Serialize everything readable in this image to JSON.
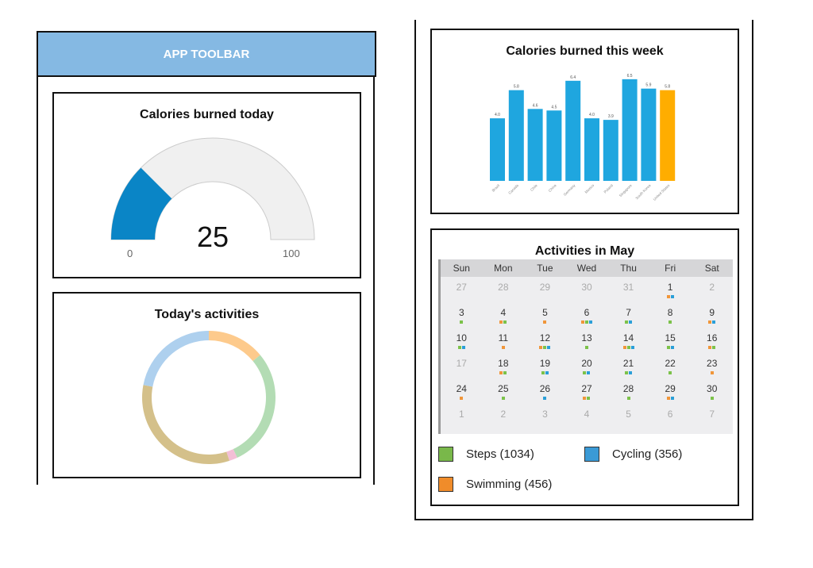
{
  "toolbar": {
    "title": "APP TOOLBAR"
  },
  "gauge": {
    "title": "Calories burned today",
    "value": 25,
    "value_label": "25",
    "min_label": "0",
    "max_label": "100",
    "color": "#0a85c6"
  },
  "activities": {
    "title": "Today's activities",
    "segments": [
      {
        "name": "orange",
        "fraction": 0.14,
        "color": "#fdca8c"
      },
      {
        "name": "green",
        "fraction": 0.29,
        "color": "#b3dcb4"
      },
      {
        "name": "pink",
        "fraction": 0.02,
        "color": "#f3bfd6"
      },
      {
        "name": "tan",
        "fraction": 0.33,
        "color": "#d4c08a"
      },
      {
        "name": "blue",
        "fraction": 0.22,
        "color": "#aed0ee"
      }
    ]
  },
  "chart_data": {
    "type": "bar",
    "title": "Calories burned this week",
    "categories": [
      "Brazil",
      "Canada",
      "Chile",
      "China",
      "Germany",
      "Mexico",
      "Poland",
      "Singapore",
      "South Korea",
      "United States"
    ],
    "values": [
      4.0,
      5.8,
      4.6,
      4.5,
      6.4,
      4.0,
      3.9,
      6.5,
      5.9,
      5.8
    ],
    "value_labels": [
      "4.0",
      "5.8",
      "4.6",
      "4.5",
      "6.4",
      "4.0",
      "3.9",
      "6.5",
      "5.9",
      "5.8"
    ],
    "colors": [
      "#1fa6df",
      "#1fa6df",
      "#1fa6df",
      "#1fa6df",
      "#1fa6df",
      "#1fa6df",
      "#1fa6df",
      "#1fa6df",
      "#1fa6df",
      "#ffad00"
    ],
    "ylim": [
      0,
      7
    ]
  },
  "calendar": {
    "title": "Activities in May",
    "weekdays": [
      "Sun",
      "Mon",
      "Tue",
      "Wed",
      "Thu",
      "Fri",
      "Sat"
    ],
    "days": [
      {
        "d": "27",
        "m": 1,
        "a": ""
      },
      {
        "d": "28",
        "m": 1,
        "a": ""
      },
      {
        "d": "29",
        "m": 1,
        "a": ""
      },
      {
        "d": "30",
        "m": 1,
        "a": ""
      },
      {
        "d": "31",
        "m": 1,
        "a": ""
      },
      {
        "d": "1",
        "m": 0,
        "a": "ob"
      },
      {
        "d": "2",
        "m": 1,
        "a": ""
      },
      {
        "d": "3",
        "m": 0,
        "a": "g"
      },
      {
        "d": "4",
        "m": 0,
        "a": "og"
      },
      {
        "d": "5",
        "m": 0,
        "a": "o"
      },
      {
        "d": "6",
        "m": 0,
        "a": "ogb"
      },
      {
        "d": "7",
        "m": 0,
        "a": "gb"
      },
      {
        "d": "8",
        "m": 0,
        "a": "g"
      },
      {
        "d": "9",
        "m": 0,
        "a": "ob"
      },
      {
        "d": "10",
        "m": 0,
        "a": "gb"
      },
      {
        "d": "11",
        "m": 0,
        "a": "o"
      },
      {
        "d": "12",
        "m": 0,
        "a": "ogb"
      },
      {
        "d": "13",
        "m": 0,
        "a": "g"
      },
      {
        "d": "14",
        "m": 0,
        "a": "ogb"
      },
      {
        "d": "15",
        "m": 0,
        "a": "gb"
      },
      {
        "d": "16",
        "m": 0,
        "a": "og"
      },
      {
        "d": "17",
        "m": 1,
        "a": ""
      },
      {
        "d": "18",
        "m": 0,
        "a": "og"
      },
      {
        "d": "19",
        "m": 0,
        "a": "gb"
      },
      {
        "d": "20",
        "m": 0,
        "a": "gb"
      },
      {
        "d": "21",
        "m": 0,
        "a": "gb"
      },
      {
        "d": "22",
        "m": 0,
        "a": "g"
      },
      {
        "d": "23",
        "m": 0,
        "a": "o"
      },
      {
        "d": "24",
        "m": 0,
        "a": "o"
      },
      {
        "d": "25",
        "m": 0,
        "a": "g"
      },
      {
        "d": "26",
        "m": 0,
        "a": "b"
      },
      {
        "d": "27",
        "m": 0,
        "a": "og"
      },
      {
        "d": "28",
        "m": 0,
        "a": "g"
      },
      {
        "d": "29",
        "m": 0,
        "a": "ob"
      },
      {
        "d": "30",
        "m": 0,
        "a": "g"
      },
      {
        "d": "1",
        "m": 1,
        "a": ""
      },
      {
        "d": "2",
        "m": 1,
        "a": ""
      },
      {
        "d": "3",
        "m": 1,
        "a": ""
      },
      {
        "d": "4",
        "m": 1,
        "a": ""
      },
      {
        "d": "5",
        "m": 1,
        "a": ""
      },
      {
        "d": "6",
        "m": 1,
        "a": ""
      },
      {
        "d": "7",
        "m": 1,
        "a": ""
      }
    ],
    "dot_colors": {
      "o": "#f0963a",
      "g": "#7cc24a",
      "b": "#2a9fd8"
    },
    "legend": [
      {
        "label": "Steps (1034)",
        "color": "#79b84a"
      },
      {
        "label": "Cycling (356)",
        "color": "#3a9ad6"
      },
      {
        "label": "Swimming (456)",
        "color": "#f08c2a"
      }
    ]
  }
}
